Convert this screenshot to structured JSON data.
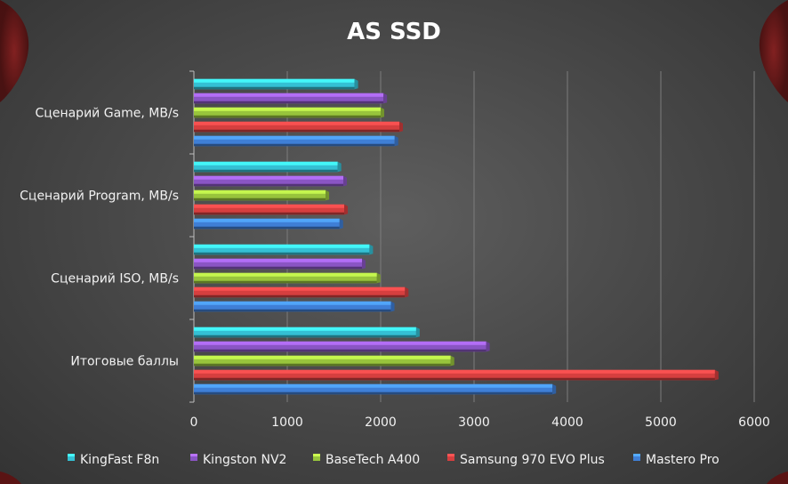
{
  "chart_data": {
    "type": "bar",
    "orientation": "horizontal",
    "title": "AS SSD",
    "xlabel": "",
    "ylabel": "",
    "xlim": [
      0,
      6000
    ],
    "x_ticks": [
      "0",
      "1000",
      "2000",
      "3000",
      "4000",
      "5000",
      "6000"
    ],
    "grid": true,
    "legend_position": "bottom",
    "categories": [
      "Сценарий Game, MB/s",
      "Сценарий Program, MB/s",
      "Сценарий ISO, MB/s",
      "Итоговые баллы"
    ],
    "series": [
      {
        "name": "KingFast F8n",
        "color": "#34c0d4",
        "values": [
          1720,
          1540,
          1880,
          2380
        ]
      },
      {
        "name": "Kingston NV2",
        "color": "#8a55c4",
        "values": [
          2030,
          1600,
          1800,
          3130
        ]
      },
      {
        "name": "BaseTech A400",
        "color": "#98c43c",
        "values": [
          2000,
          1410,
          1960,
          2750
        ]
      },
      {
        "name": "Samsung 970 EVO Plus",
        "color": "#d63f3f",
        "values": [
          2200,
          1610,
          2260,
          5580
        ]
      },
      {
        "name": "Mastero Pro",
        "color": "#3f7fd6",
        "values": [
          2150,
          1560,
          2110,
          3840
        ]
      }
    ]
  }
}
